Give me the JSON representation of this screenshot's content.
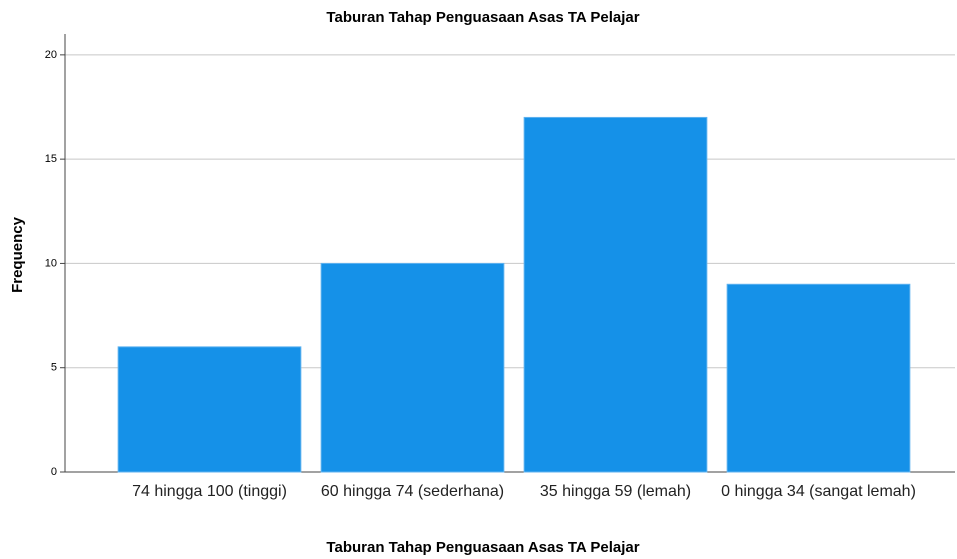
{
  "chart_data": {
    "type": "bar",
    "title": "Taburan Tahap Penguasaan Asas TA Pelajar",
    "x_label": "Taburan Tahap Penguasaan Asas TA Pelajar",
    "y_label": "Frequency",
    "categories": [
      "74 hingga 100 (tinggi)",
      "60 hingga 74 (sederhana)",
      "35 hingga 59 (lemah)",
      "0 hingga 34 (sangat lemah)"
    ],
    "values": [
      6,
      10,
      17,
      9
    ],
    "color": "#1591e8",
    "ylim": [
      0,
      21
    ],
    "yticks": [
      0,
      5,
      10,
      15,
      20
    ],
    "grid": true
  }
}
